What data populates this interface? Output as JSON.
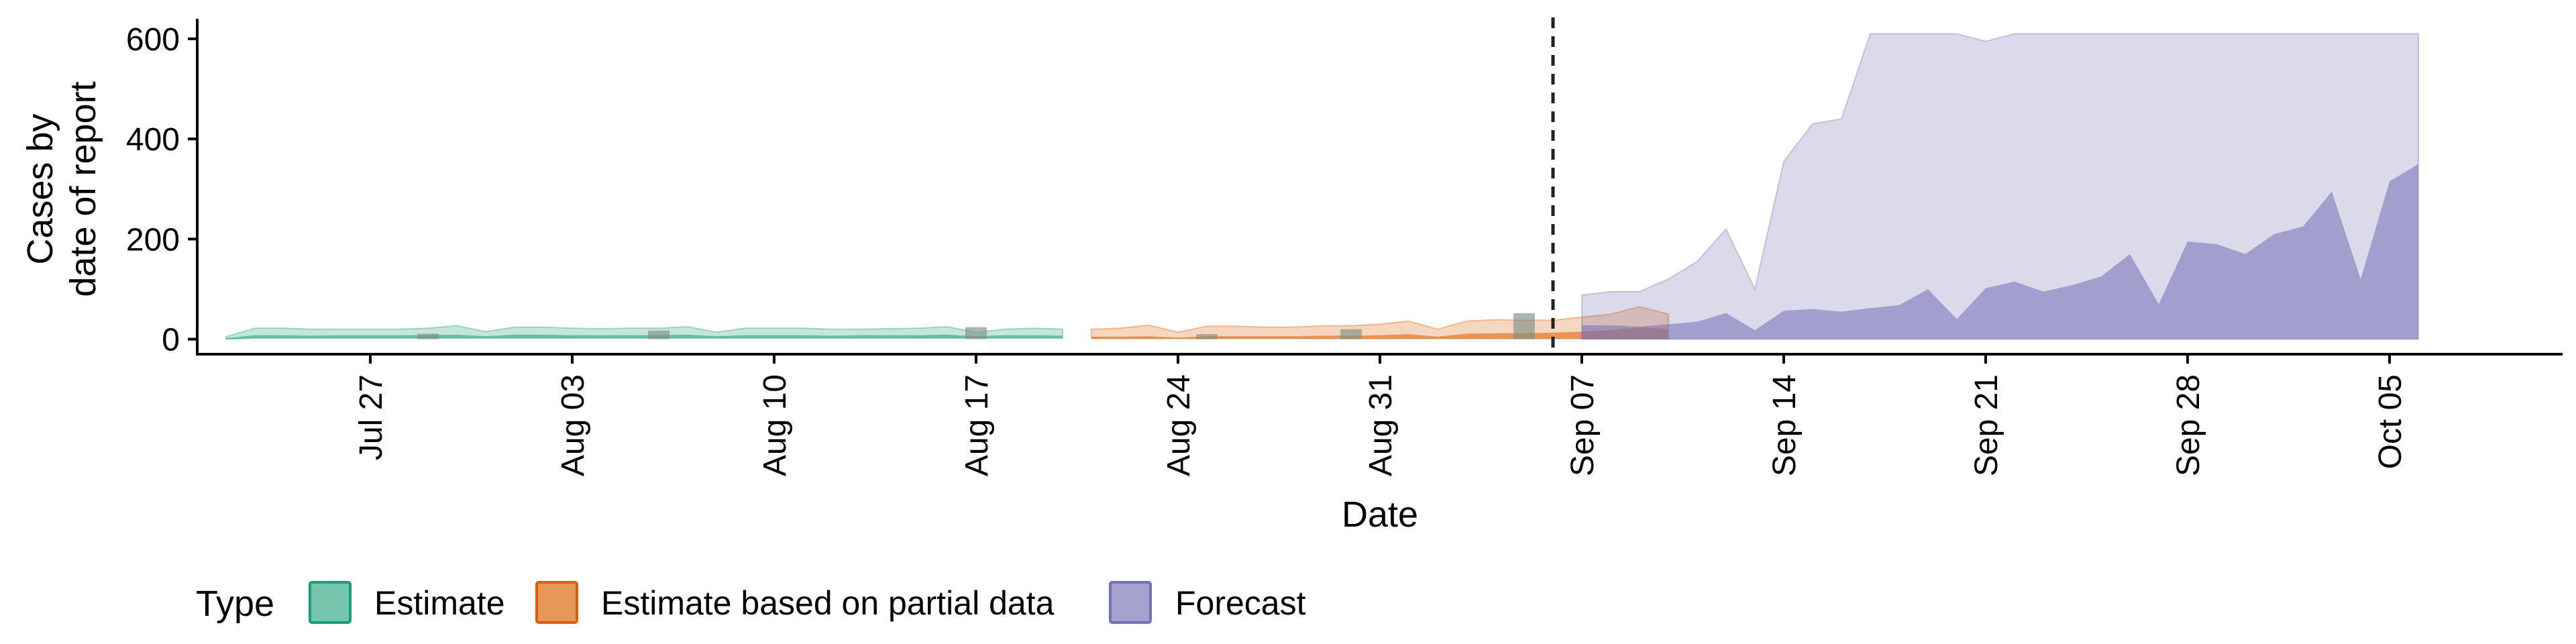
{
  "chart_data": {
    "type": "area",
    "xlabel": "Date",
    "ylabel_lines": [
      "Cases by",
      "date of report"
    ],
    "x_range": [
      "2020-07-21",
      "2020-10-11"
    ],
    "ylim": [
      -30,
      640
    ],
    "y_ticks": [
      0,
      200,
      400,
      600
    ],
    "x_ticks": [
      {
        "date": "2020-07-27",
        "label": "Jul 27"
      },
      {
        "date": "2020-08-03",
        "label": "Aug 03"
      },
      {
        "date": "2020-08-10",
        "label": "Aug 10"
      },
      {
        "date": "2020-08-17",
        "label": "Aug 17"
      },
      {
        "date": "2020-08-24",
        "label": "Aug 24"
      },
      {
        "date": "2020-08-31",
        "label": "Aug 31"
      },
      {
        "date": "2020-09-07",
        "label": "Sep 07"
      },
      {
        "date": "2020-09-14",
        "label": "Sep 14"
      },
      {
        "date": "2020-09-21",
        "label": "Sep 21"
      },
      {
        "date": "2020-09-28",
        "label": "Sep 28"
      },
      {
        "date": "2020-10-05",
        "label": "Oct 05"
      }
    ],
    "forecast_start_line": "2020-09-06",
    "legend": {
      "position": "bottom-left",
      "title": "Type",
      "entries": [
        {
          "label": "Estimate",
          "color": "#1B9E77"
        },
        {
          "label": "Estimate based on partial data",
          "color": "#D95F02"
        },
        {
          "label": "Forecast",
          "color": "#7570B3"
        }
      ]
    },
    "series": [
      {
        "type_key": "Estimate",
        "color": "#1B9E77",
        "start": "2020-07-22",
        "upper": [
          5,
          22,
          22,
          20,
          20,
          20,
          20,
          22,
          27,
          15,
          24,
          24,
          22,
          21,
          22,
          22,
          25,
          14,
          22,
          22,
          22,
          20,
          20,
          21,
          22,
          25,
          14,
          20,
          22,
          20
        ],
        "lower": [
          0,
          2,
          2,
          2,
          2,
          2,
          2,
          2,
          2,
          2,
          2,
          2,
          2,
          2,
          2,
          2,
          2,
          2,
          2,
          2,
          2,
          2,
          2,
          2,
          2,
          2,
          2,
          2,
          2,
          2
        ],
        "median": [
          2,
          8,
          8,
          7,
          8,
          8,
          8,
          8,
          9,
          6,
          9,
          9,
          8,
          8,
          8,
          8,
          9,
          6,
          8,
          8,
          8,
          7,
          8,
          8,
          8,
          9,
          6,
          8,
          8,
          7
        ]
      },
      {
        "type_key": "Estimate based on partial data",
        "color": "#D95F02",
        "start": "2020-08-21",
        "upper": [
          20,
          22,
          28,
          14,
          26,
          26,
          24,
          24,
          27,
          27,
          30,
          36,
          20,
          36,
          39,
          38,
          38,
          44,
          50,
          65,
          50
        ],
        "lower": [
          1,
          1,
          1,
          1,
          1,
          1,
          1,
          1,
          1,
          1,
          1,
          1,
          1,
          1,
          1,
          1,
          1,
          1,
          1,
          1,
          1
        ],
        "median": [
          5,
          5,
          6,
          3,
          6,
          6,
          6,
          6,
          7,
          7,
          8,
          10,
          5,
          11,
          12,
          12,
          13,
          15,
          18,
          24,
          20
        ]
      },
      {
        "type_key": "Forecast",
        "color": "#7570B3",
        "start": "2020-09-07",
        "upper": [
          88,
          95,
          95,
          120,
          155,
          220,
          100,
          355,
          430,
          440,
          610,
          610,
          610,
          610,
          595,
          610,
          610,
          610,
          610,
          610,
          610,
          610,
          610,
          610,
          610,
          610,
          610,
          610,
          610,
          610
        ],
        "lower": [
          0,
          0,
          0,
          0,
          0,
          0,
          0,
          0,
          0,
          0,
          0,
          0,
          0,
          0,
          0,
          0,
          0,
          0,
          0,
          0,
          0,
          0,
          0,
          0,
          0,
          0,
          0,
          0,
          0,
          0
        ],
        "median": [
          28,
          28,
          25,
          30,
          35,
          52,
          18,
          57,
          60,
          55,
          62,
          68,
          100,
          40,
          102,
          115,
          95,
          108,
          125,
          170,
          70,
          195,
          190,
          170,
          210,
          225,
          295,
          120,
          315,
          350
        ]
      }
    ],
    "observed": [
      {
        "date": "2020-07-29",
        "value": 11
      },
      {
        "date": "2020-08-06",
        "value": 17
      },
      {
        "date": "2020-08-17",
        "value": 24
      },
      {
        "date": "2020-08-25",
        "value": 10
      },
      {
        "date": "2020-08-30",
        "value": 20
      },
      {
        "date": "2020-09-05",
        "value": 52
      }
    ]
  }
}
